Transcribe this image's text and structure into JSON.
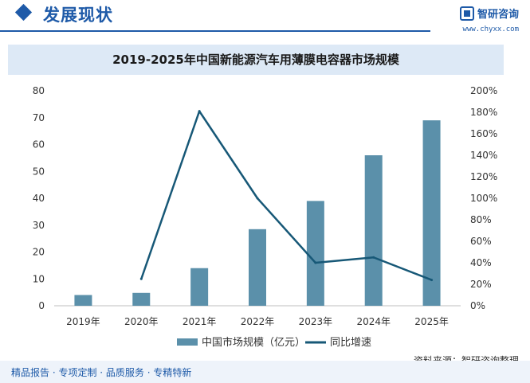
{
  "header": {
    "title": "发展现状"
  },
  "brand": {
    "name": "智研咨询",
    "url": "www.chyxx.com"
  },
  "chart_data": {
    "type": "bar",
    "title": "2019-2025年中国新能源汽车用薄膜电容器市场规模",
    "categories": [
      "2019年",
      "2020年",
      "2021年",
      "2022年",
      "2023年",
      "2024年",
      "2025年"
    ],
    "series": [
      {
        "name": "中国市场规模（亿元）",
        "type": "bar",
        "axis": "left",
        "color": "#5b90aa",
        "values": [
          4,
          4.8,
          14,
          28.5,
          39,
          56,
          69
        ]
      },
      {
        "name": "同比增速",
        "type": "line",
        "axis": "right",
        "color": "#175877",
        "values": [
          null,
          25,
          181,
          100,
          40,
          45,
          24
        ]
      }
    ],
    "y_left": {
      "min": 0,
      "max": 80,
      "step": 10,
      "ticks": [
        "0",
        "10",
        "20",
        "30",
        "40",
        "50",
        "60",
        "70",
        "80"
      ]
    },
    "y_right": {
      "min": 0,
      "max": 200,
      "step": 20,
      "ticks": [
        "0%",
        "20%",
        "40%",
        "60%",
        "80%",
        "100%",
        "120%",
        "140%",
        "160%",
        "180%",
        "200%"
      ]
    },
    "grid": false,
    "legend_position": "bottom"
  },
  "source": "资料来源：智研咨询整理",
  "footer": {
    "text": "精品报告 · 专项定制 · 品质服务 · 专精特新"
  }
}
